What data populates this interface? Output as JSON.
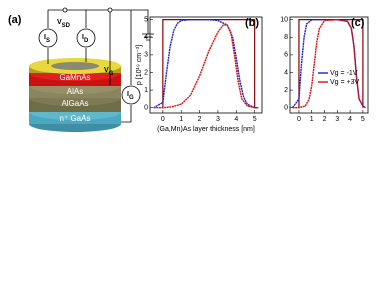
{
  "diagram": {
    "panel_label": "(a)",
    "sources": [
      {
        "main": "I",
        "sub": "S"
      },
      {
        "main": "I",
        "sub": "D"
      },
      {
        "main": "I",
        "sub": "G"
      }
    ],
    "voltages": [
      {
        "main": "V",
        "sub": "SD"
      },
      {
        "main": "V",
        "sub": "G"
      }
    ],
    "layers": [
      "GaMnAs",
      "AlAs",
      "AlGaAs",
      "n⁺ GaAs"
    ]
  },
  "chart_data": [
    {
      "type": "line",
      "panel_label": "(b)",
      "xlabel": "(Ga,Mn)As layer thickness [nm]",
      "ylabel": "p [10¹⁹ cm⁻³]",
      "xlim": [
        -0.7,
        5.4
      ],
      "ylim": [
        -0.3,
        5.15
      ],
      "xticks": [
        0,
        1,
        2,
        3,
        4,
        5
      ],
      "yticks": [
        0,
        1,
        2,
        3,
        4,
        5
      ],
      "box": {
        "x": [
          0,
          0,
          5,
          5
        ],
        "y": [
          0,
          5,
          5,
          0
        ],
        "color": "#8b0000"
      },
      "series": [
        {
          "name": "Vg = -1V",
          "color": "#1f1fd0",
          "x": [
            -0.5,
            0,
            0.2,
            0.4,
            0.6,
            0.8,
            1,
            1.5,
            2,
            2.5,
            3,
            3.5,
            3.8,
            4,
            4.2,
            4.4,
            4.6,
            5,
            5.2
          ],
          "values": [
            0,
            0.3,
            2,
            3.5,
            4.4,
            4.8,
            4.95,
            5,
            5,
            5,
            4.95,
            4.7,
            4,
            2.8,
            1.5,
            0.6,
            0.2,
            0,
            0
          ]
        },
        {
          "name": "Vg = +3V",
          "color": "#d81010",
          "x": [
            -0.5,
            0,
            0.5,
            1,
            1.5,
            2,
            2.5,
            3,
            3.3,
            3.5,
            3.7,
            3.9,
            4.1,
            4.3,
            4.6,
            5,
            5.2
          ],
          "values": [
            0,
            0,
            0.05,
            0.2,
            0.7,
            1.8,
            3.2,
            4.3,
            4.7,
            4.7,
            4.3,
            3,
            1.5,
            0.5,
            0.1,
            0,
            0
          ]
        }
      ]
    },
    {
      "type": "line",
      "panel_label": "(c)",
      "xlim": [
        -0.7,
        5.4
      ],
      "ylim": [
        -0.6,
        10.3
      ],
      "xticks": [
        0,
        1,
        2,
        3,
        4,
        5
      ],
      "yticks": [
        0,
        2,
        4,
        6,
        8,
        10
      ],
      "box": {
        "x": [
          0,
          0,
          5,
          5
        ],
        "y": [
          0,
          10,
          10,
          0
        ],
        "color": "#8b0000"
      },
      "series": [
        {
          "name": "Vg = -1V",
          "color": "#1f1fd0",
          "x": [
            -0.5,
            0,
            0.2,
            0.4,
            0.6,
            1,
            2,
            3,
            3.8,
            4.1,
            4.3,
            4.5,
            4.7,
            5,
            5.2
          ],
          "values": [
            0,
            1,
            5,
            8,
            9.5,
            10,
            10,
            10,
            9.8,
            9,
            7,
            3.5,
            1,
            0.2,
            0
          ]
        },
        {
          "name": "Vg = +3V",
          "color": "#d81010",
          "x": [
            -0.5,
            0,
            0.5,
            0.8,
            1,
            1.2,
            1.4,
            1.6,
            2,
            3,
            3.8,
            4.1,
            4.3,
            4.5,
            4.7,
            5,
            5.2
          ],
          "values": [
            0,
            0,
            0.2,
            1,
            2.5,
            5,
            7.5,
            9,
            9.9,
            10,
            9.8,
            9,
            7,
            3.5,
            1,
            0.2,
            0
          ]
        }
      ],
      "legend": "right"
    }
  ]
}
